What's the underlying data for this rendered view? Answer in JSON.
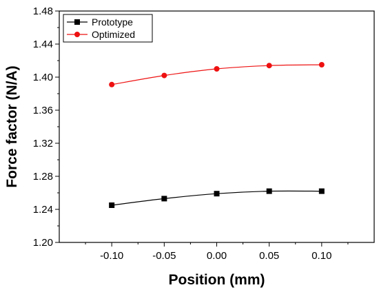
{
  "chart_data": {
    "type": "line",
    "title": "",
    "xlabel": "Position (mm)",
    "ylabel": "Force factor (N/A)",
    "xlim": [
      -0.15,
      0.15
    ],
    "ylim": [
      1.2,
      1.48
    ],
    "x_ticks": [
      -0.1,
      -0.05,
      0.0,
      0.05,
      0.1
    ],
    "x_tick_labels": [
      "-0.10",
      "-0.05",
      "0.00",
      "0.05",
      "0.10"
    ],
    "y_ticks": [
      1.2,
      1.24,
      1.28,
      1.32,
      1.36,
      1.4,
      1.44,
      1.48
    ],
    "y_tick_labels": [
      "1.20",
      "1.24",
      "1.28",
      "1.32",
      "1.36",
      "1.40",
      "1.44",
      "1.48"
    ],
    "grid": false,
    "legend_position": "top-left",
    "x": [
      -0.1,
      -0.05,
      0.0,
      0.05,
      0.1
    ],
    "series": [
      {
        "name": "Prototype",
        "values": [
          1.245,
          1.253,
          1.259,
          1.262,
          1.262
        ],
        "color": "#000000",
        "marker": "square"
      },
      {
        "name": "Optimized",
        "values": [
          1.391,
          1.402,
          1.41,
          1.414,
          1.415
        ],
        "color": "#ee1111",
        "marker": "circle"
      }
    ]
  }
}
